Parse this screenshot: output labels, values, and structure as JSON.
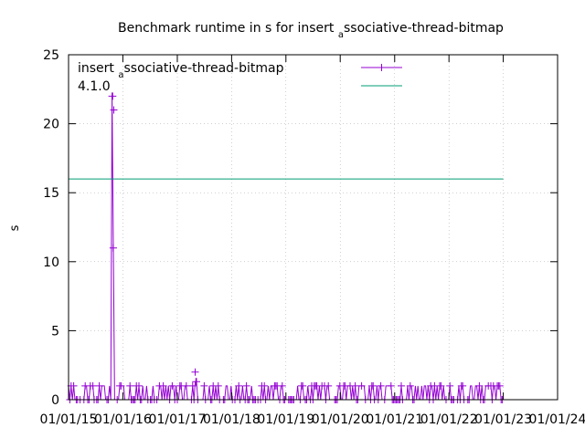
{
  "chart_data": {
    "type": "line",
    "title_main": "Benchmark runtime in s for insert",
    "title_sub": "a",
    "title_rest": "ssociative-thread-bitmap",
    "xlabel": "",
    "ylabel": "s",
    "ylim": [
      0,
      25
    ],
    "yticks": [
      0,
      5,
      10,
      15,
      20,
      25
    ],
    "xlim": [
      "2015-01-01",
      "2024-01-01"
    ],
    "xticks": [
      "01/01/15",
      "01/01/16",
      "01/01/17",
      "01/01/18",
      "01/01/19",
      "01/01/20",
      "01/01/21",
      "01/01/22",
      "01/01/23",
      "01/01/24"
    ],
    "legend_position": "top-left",
    "series": [
      {
        "name_main": "insert",
        "name_sub": "a",
        "name_rest": "ssociative-thread-bitmap",
        "color": "#9400d3",
        "style": "linespoints",
        "baseline_range": [
          "2015-01-01",
          "2023-01-01"
        ],
        "baseline_values": [
          0,
          1
        ],
        "peaks": [
          {
            "x": "2015-10-25",
            "y": 22
          },
          {
            "x": "2015-11-01",
            "y": 21
          },
          {
            "x": "2015-10-28",
            "y": 11
          },
          {
            "x": "2017-05-01",
            "y": 2
          },
          {
            "x": "2017-05-06",
            "y": 1.3
          }
        ]
      },
      {
        "name": "4.1.0",
        "color": "#009e73",
        "style": "line",
        "x": [
          "2015-01-01",
          "2023-01-01"
        ],
        "values": [
          16,
          16
        ]
      }
    ]
  }
}
